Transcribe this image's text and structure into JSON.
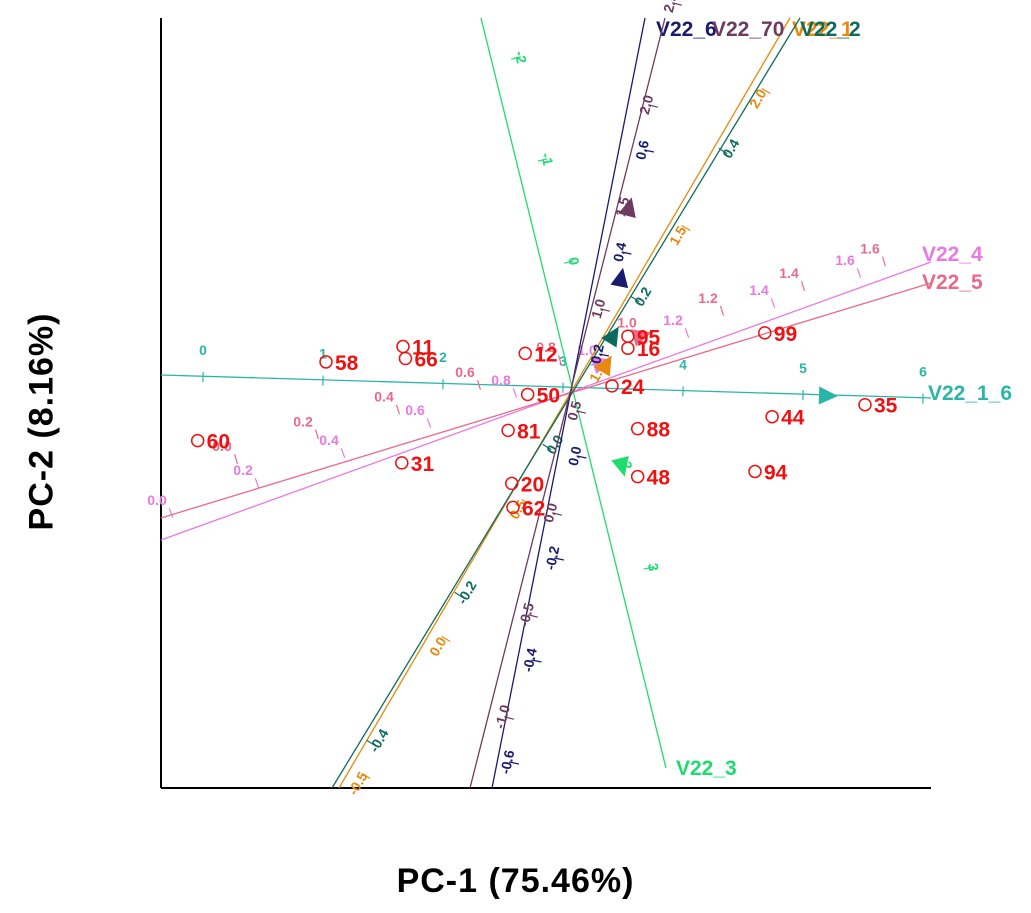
{
  "chart_data": {
    "type": "scatter",
    "title": "",
    "xlabel": "PC-1  (75.46%)",
    "ylabel": "PC-2  (8.16%)",
    "xlim": [
      -0.29,
      0.34
    ],
    "ylim": [
      -0.23,
      0.22
    ],
    "grid": false,
    "points": [
      {
        "label": "58",
        "x": -0.155,
        "y": 0.019
      },
      {
        "label": "11",
        "x": -0.092,
        "y": 0.028
      },
      {
        "label": "66",
        "x": -0.09,
        "y": 0.021
      },
      {
        "label": "60",
        "x": -0.26,
        "y": -0.027
      },
      {
        "label": "31",
        "x": -0.093,
        "y": -0.04
      },
      {
        "label": "12",
        "x": 0.008,
        "y": 0.024
      },
      {
        "label": "50",
        "x": 0.01,
        "y": 0.0
      },
      {
        "label": "81",
        "x": -0.006,
        "y": -0.021
      },
      {
        "label": "20",
        "x": -0.003,
        "y": -0.052
      },
      {
        "label": "62",
        "x": -0.002,
        "y": -0.066
      },
      {
        "label": "24",
        "x": 0.079,
        "y": 0.005
      },
      {
        "label": "95",
        "x": 0.092,
        "y": 0.034
      },
      {
        "label": "16",
        "x": 0.092,
        "y": 0.027
      },
      {
        "label": "99",
        "x": 0.204,
        "y": 0.036
      },
      {
        "label": "88",
        "x": 0.1,
        "y": -0.02
      },
      {
        "label": "44",
        "x": 0.21,
        "y": -0.013
      },
      {
        "label": "35",
        "x": 0.286,
        "y": -0.006
      },
      {
        "label": "94",
        "x": 0.196,
        "y": -0.045
      },
      {
        "label": "48",
        "x": 0.1,
        "y": -0.048
      }
    ],
    "biplot_axes": [
      {
        "name": "V22_1_6",
        "color": "#2bb5a8",
        "ticks": [
          "0",
          "1",
          "2",
          "3",
          "4",
          "5",
          "6"
        ],
        "arrow_at": "5.2"
      },
      {
        "name": "V22_3",
        "color": "#1edc6e",
        "ticks": [
          "-2",
          "-1",
          "0",
          "1",
          "2",
          "3"
        ],
        "arrow_at": "2"
      },
      {
        "name": "V22_4",
        "color": "#e879e0",
        "ticks": [
          "0.0",
          "0.2",
          "0.4",
          "0.6",
          "0.8",
          "1.0",
          "1.2",
          "1.4",
          "1.6"
        ],
        "arrow_at": "1.0"
      },
      {
        "name": "V22_5",
        "color": "#e86a8a",
        "ticks": [
          "0.0",
          "0.2",
          "0.4",
          "0.6",
          "0.8",
          "1.0",
          "1.2",
          "1.4",
          "1.6"
        ],
        "arrow_at": "1.0"
      },
      {
        "name": "V22_1",
        "color": "#e8890c",
        "ticks": [
          "-0.5",
          "0.0",
          "0.5",
          "1.0",
          "1.5",
          "2.0"
        ],
        "arrow_at": "1.0"
      },
      {
        "name": "V22_2",
        "color": "#0d6b5e",
        "ticks": [
          "-0.4",
          "-0.2",
          "0.0",
          "0.2",
          "0.4"
        ],
        "arrow_at": "0.15"
      },
      {
        "name": "V22_6",
        "color": "#1a1a6e",
        "ticks": [
          "-0.6",
          "-0.4",
          "-0.2",
          "0.0",
          "0.2",
          "0.4",
          "0.6"
        ],
        "arrow_at": "0.35"
      },
      {
        "name": "V22_70",
        "color": "#6e3a5e",
        "ticks": [
          "-1.0",
          "-0.5",
          "0.0",
          "0.5",
          "1.0",
          "1.5",
          "2.0",
          "2.5"
        ],
        "arrow_at": "1.5"
      }
    ]
  },
  "point_color": "#ee1111"
}
